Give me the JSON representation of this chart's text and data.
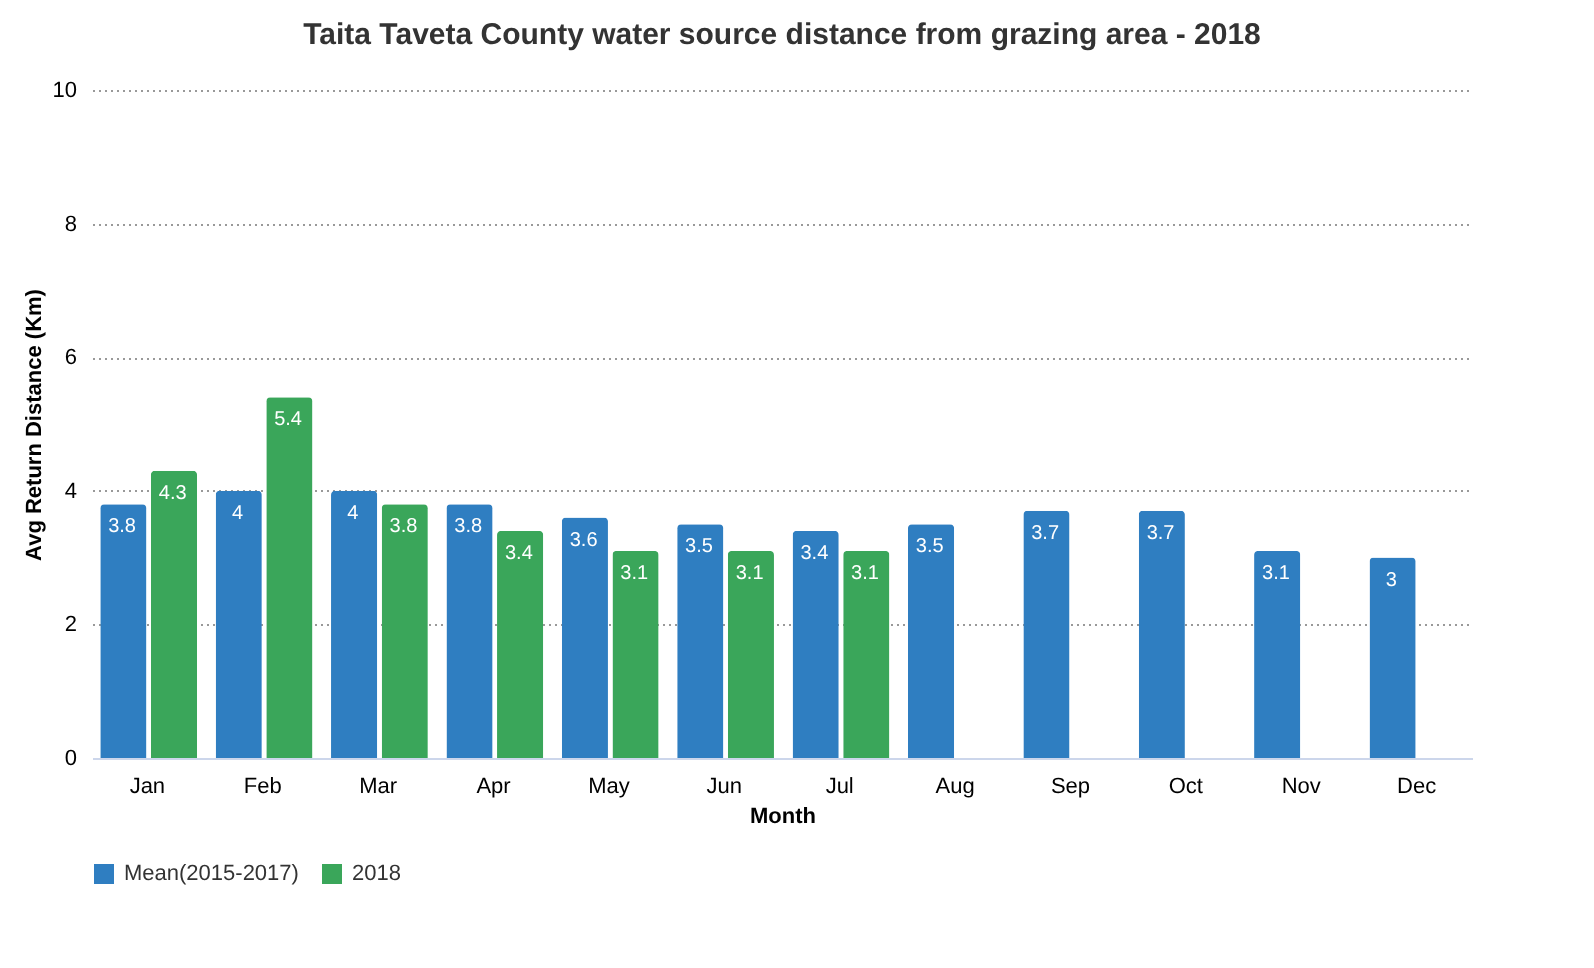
{
  "chart_data": {
    "type": "bar",
    "title": "Taita Taveta County water source distance from grazing area - 2018",
    "xlabel": "Month",
    "ylabel": "Avg Return Distance (Km)",
    "categories": [
      "Jan",
      "Feb",
      "Mar",
      "Apr",
      "May",
      "Jun",
      "Jul",
      "Aug",
      "Sep",
      "Oct",
      "Nov",
      "Dec"
    ],
    "series": [
      {
        "name": "Mean(2015-2017)",
        "color": "#2f7ec1",
        "values": [
          3.8,
          4,
          4,
          3.8,
          3.6,
          3.5,
          3.4,
          3.5,
          3.7,
          3.7,
          3.1,
          3
        ]
      },
      {
        "name": "2018",
        "color": "#3aa65a",
        "values": [
          4.3,
          5.4,
          3.8,
          3.4,
          3.1,
          3.1,
          3.1,
          null,
          null,
          null,
          null,
          null
        ]
      }
    ],
    "ylim": [
      0,
      10
    ],
    "yticks": [
      0,
      2,
      4,
      6,
      8,
      10
    ],
    "grid": "y",
    "legend": "bottom",
    "data_labels": true
  }
}
